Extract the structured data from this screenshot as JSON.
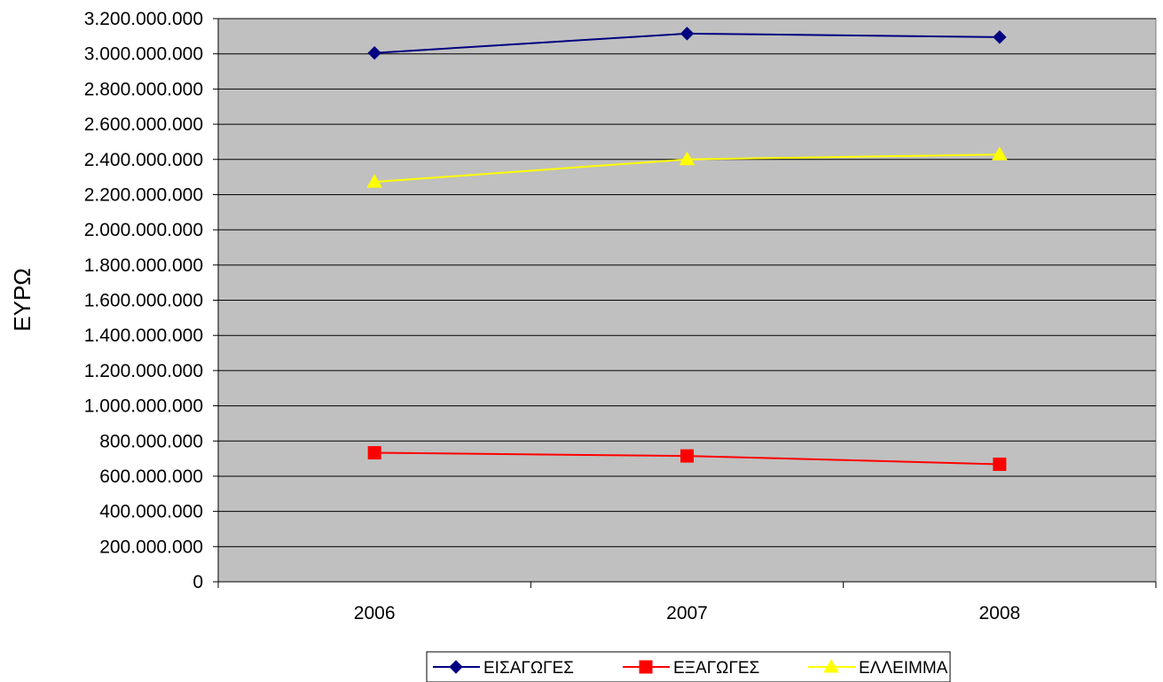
{
  "chart_data": {
    "type": "line",
    "title": "",
    "xlabel": "",
    "ylabel": "ΕΥΡΩ",
    "categories": [
      "2006",
      "2007",
      "2008"
    ],
    "ylim": [
      0,
      3200000000
    ],
    "ytick_step": 200000000,
    "ytick_labels": [
      "0",
      "200.000.000",
      "400.000.000",
      "600.000.000",
      "800.000.000",
      "1.000.000.000",
      "1.200.000.000",
      "1.400.000.000",
      "1.600.000.000",
      "1.800.000.000",
      "2.000.000.000",
      "2.200.000.000",
      "2.400.000.000",
      "2.600.000.000",
      "2.800.000.000",
      "3.000.000.000",
      "3.200.000.000"
    ],
    "grid": true,
    "legend_position": "bottom",
    "plot_background": "#C0C0C0",
    "series": [
      {
        "name": "ΕΙΣΑΓΩΓΕΣ",
        "values": [
          3005000000,
          3115000000,
          3095000000
        ],
        "color": "#000080",
        "marker": "diamond"
      },
      {
        "name": "ΕΞΑΓΩΓΕΣ",
        "values": [
          733000000,
          715000000,
          668000000
        ],
        "color": "#FF0000",
        "marker": "square"
      },
      {
        "name": "ΕΛΛΕΙΜΜΑ",
        "values": [
          2272000000,
          2400000000,
          2428000000
        ],
        "color": "#FFFF00",
        "marker": "triangle"
      }
    ]
  }
}
